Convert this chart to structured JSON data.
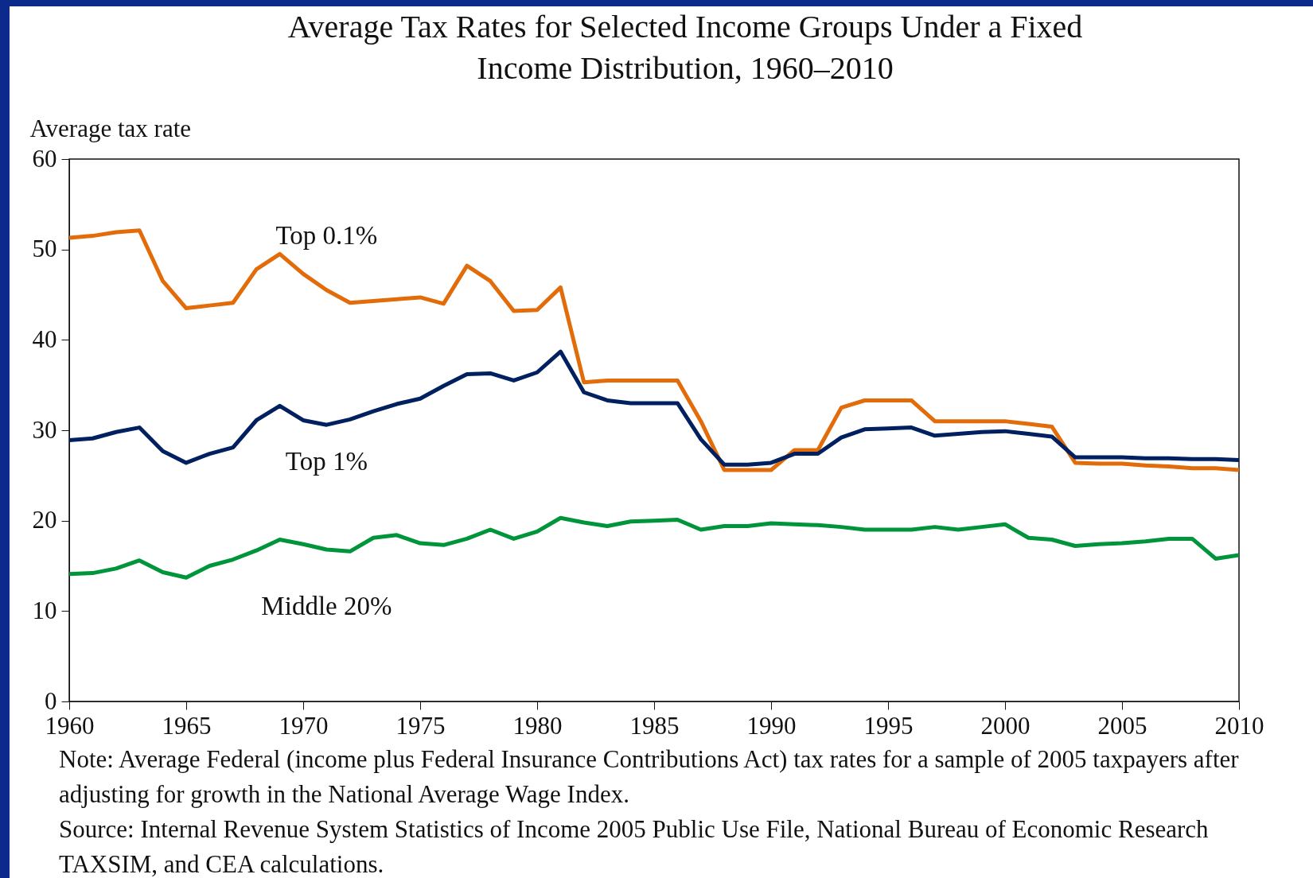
{
  "chart_data": {
    "type": "line",
    "title": "Average Tax Rates for Selected Income Groups Under a Fixed Income Distribution, 1960–2010",
    "ylabel": "Average tax rate",
    "x": [
      1960,
      1961,
      1962,
      1963,
      1964,
      1965,
      1966,
      1967,
      1968,
      1969,
      1970,
      1971,
      1972,
      1973,
      1974,
      1975,
      1976,
      1977,
      1978,
      1979,
      1980,
      1981,
      1982,
      1983,
      1984,
      1985,
      1986,
      1987,
      1988,
      1989,
      1990,
      1991,
      1992,
      1993,
      1994,
      1995,
      1996,
      1997,
      1998,
      1999,
      2000,
      2001,
      2002,
      2003,
      2004,
      2005,
      2006,
      2007,
      2008,
      2009,
      2010
    ],
    "series": [
      {
        "name": "Top 0.1%",
        "color": "#e36c0a",
        "values": [
          51.3,
          51.5,
          51.9,
          52.1,
          46.5,
          43.5,
          43.8,
          44.1,
          47.8,
          49.5,
          47.3,
          45.5,
          44.1,
          44.3,
          44.5,
          44.7,
          44.0,
          48.2,
          46.5,
          43.2,
          43.3,
          45.8,
          35.3,
          35.5,
          35.5,
          35.5,
          35.5,
          31.0,
          25.6,
          25.6,
          25.6,
          27.8,
          27.8,
          32.5,
          33.3,
          33.3,
          33.3,
          31.0,
          31.0,
          31.0,
          31.0,
          30.7,
          30.4,
          26.4,
          26.3,
          26.3,
          26.1,
          26.0,
          25.8,
          25.8,
          25.6
        ]
      },
      {
        "name": "Top 1%",
        "color": "#002060",
        "values": [
          28.9,
          29.1,
          29.8,
          30.3,
          27.7,
          26.4,
          27.4,
          28.1,
          31.1,
          32.7,
          31.1,
          30.6,
          31.2,
          32.1,
          32.9,
          33.5,
          34.9,
          36.2,
          36.3,
          35.5,
          36.4,
          38.7,
          34.2,
          33.3,
          33.0,
          33.0,
          33.0,
          29.0,
          26.2,
          26.2,
          26.4,
          27.4,
          27.4,
          29.2,
          30.1,
          30.2,
          30.3,
          29.4,
          29.6,
          29.8,
          29.9,
          29.6,
          29.3,
          27.0,
          27.0,
          27.0,
          26.9,
          26.9,
          26.8,
          26.8,
          26.7
        ]
      },
      {
        "name": "Middle 20%",
        "color": "#00953a",
        "values": [
          14.1,
          14.2,
          14.7,
          15.6,
          14.3,
          13.7,
          15.0,
          15.7,
          16.7,
          17.9,
          17.4,
          16.8,
          16.6,
          18.1,
          18.4,
          17.5,
          17.3,
          18.0,
          19.0,
          18.0,
          18.8,
          20.3,
          19.8,
          19.4,
          19.9,
          20.0,
          20.1,
          19.0,
          19.4,
          19.4,
          19.7,
          19.6,
          19.5,
          19.3,
          19.0,
          19.0,
          19.0,
          19.3,
          19.0,
          19.3,
          19.6,
          18.1,
          17.9,
          17.2,
          17.4,
          17.5,
          17.7,
          18.0,
          18.0,
          15.8,
          16.2
        ]
      }
    ],
    "xlim": [
      1960,
      2010
    ],
    "xticks": [
      1960,
      1965,
      1970,
      1975,
      1980,
      1985,
      1990,
      1995,
      2000,
      2005,
      2010
    ],
    "ylim": [
      0,
      60
    ],
    "yticks": [
      0,
      10,
      20,
      30,
      40,
      50,
      60
    ],
    "grid": false,
    "legend": false,
    "line_style": "solid",
    "marker": "none",
    "annotations": [
      "Note: Average Federal (income plus Federal Insurance Contributions Act) tax rates for a sample of 2005 taxpayers after adjusting for growth in the National Average Wage Index.",
      "Source: Internal Revenue System Statistics of Income 2005 Public Use File, National Bureau of Economic Research TAXSIM, and CEA calculations."
    ]
  }
}
